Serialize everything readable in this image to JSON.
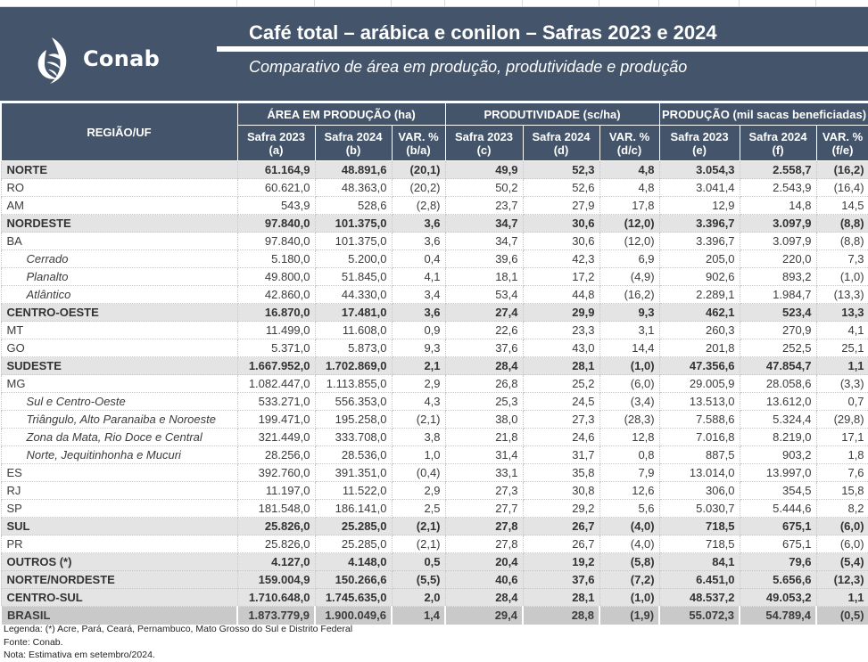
{
  "header": {
    "logo_text": "Conab",
    "title": "Café total – arábica e conilon – Safras 2023 e 2024",
    "subtitle": "Comparativo de área em produção, produtividade e produção"
  },
  "table": {
    "region_header": "REGIÃO/UF",
    "groups": [
      "ÁREA EM PRODUÇÃO (ha)",
      "PRODUTIVIDADE (sc/ha)",
      "PRODUÇÃO (mil sacas beneficiadas)"
    ],
    "subheaders": [
      {
        "l1": "Safra 2023",
        "l2": "(a)"
      },
      {
        "l1": "Safra 2024",
        "l2": "(b)"
      },
      {
        "l1": "VAR. %",
        "l2": "(b/a)"
      },
      {
        "l1": "Safra 2023",
        "l2": "(c)"
      },
      {
        "l1": "Safra 2024",
        "l2": "(d)"
      },
      {
        "l1": "VAR. %",
        "l2": "(d/c)"
      },
      {
        "l1": "Safra 2023",
        "l2": "(e)"
      },
      {
        "l1": "Safra 2024",
        "l2": "(f)"
      },
      {
        "l1": "VAR. %",
        "l2": "(f/e)"
      }
    ],
    "rows": [
      {
        "name": "NORTE",
        "type": "bold",
        "v": [
          "61.164,9",
          "48.891,6",
          "(20,1)",
          "49,9",
          "52,3",
          "4,8",
          "3.054,3",
          "2.558,7",
          "(16,2)"
        ]
      },
      {
        "name": "RO",
        "type": "normal",
        "v": [
          "60.621,0",
          "48.363,0",
          "(20,2)",
          "50,2",
          "52,6",
          "4,8",
          "3.041,4",
          "2.543,9",
          "(16,4)"
        ]
      },
      {
        "name": "AM",
        "type": "normal",
        "v": [
          "543,9",
          "528,6",
          "(2,8)",
          "23,7",
          "27,9",
          "17,8",
          "12,9",
          "14,8",
          "14,5"
        ]
      },
      {
        "name": "NORDESTE",
        "type": "bold",
        "v": [
          "97.840,0",
          "101.375,0",
          "3,6",
          "34,7",
          "30,6",
          "(12,0)",
          "3.396,7",
          "3.097,9",
          "(8,8)"
        ]
      },
      {
        "name": "BA",
        "type": "normal",
        "v": [
          "97.840,0",
          "101.375,0",
          "3,6",
          "34,7",
          "30,6",
          "(12,0)",
          "3.396,7",
          "3.097,9",
          "(8,8)"
        ]
      },
      {
        "name": "Cerrado",
        "type": "italic",
        "v": [
          "5.180,0",
          "5.200,0",
          "0,4",
          "39,6",
          "42,3",
          "6,9",
          "205,0",
          "220,0",
          "7,3"
        ]
      },
      {
        "name": "Planalto",
        "type": "italic",
        "v": [
          "49.800,0",
          "51.845,0",
          "4,1",
          "18,1",
          "17,2",
          "(4,9)",
          "902,6",
          "893,2",
          "(1,0)"
        ]
      },
      {
        "name": "Atlântico",
        "type": "italic",
        "v": [
          "42.860,0",
          "44.330,0",
          "3,4",
          "53,4",
          "44,8",
          "(16,2)",
          "2.289,1",
          "1.984,7",
          "(13,3)"
        ]
      },
      {
        "name": "CENTRO-OESTE",
        "type": "bold",
        "v": [
          "16.870,0",
          "17.481,0",
          "3,6",
          "27,4",
          "29,9",
          "9,3",
          "462,1",
          "523,4",
          "13,3"
        ]
      },
      {
        "name": "MT",
        "type": "normal",
        "v": [
          "11.499,0",
          "11.608,0",
          "0,9",
          "22,6",
          "23,3",
          "3,1",
          "260,3",
          "270,9",
          "4,1"
        ]
      },
      {
        "name": "GO",
        "type": "normal",
        "v": [
          "5.371,0",
          "5.873,0",
          "9,3",
          "37,6",
          "43,0",
          "14,4",
          "201,8",
          "252,5",
          "25,1"
        ]
      },
      {
        "name": "SUDESTE",
        "type": "bold",
        "v": [
          "1.667.952,0",
          "1.702.869,0",
          "2,1",
          "28,4",
          "28,1",
          "(1,0)",
          "47.356,6",
          "47.854,7",
          "1,1"
        ]
      },
      {
        "name": "MG",
        "type": "normal",
        "v": [
          "1.082.447,0",
          "1.113.855,0",
          "2,9",
          "26,8",
          "25,2",
          "(6,0)",
          "29.005,9",
          "28.058,6",
          "(3,3)"
        ]
      },
      {
        "name": "Sul e Centro-Oeste",
        "type": "italic",
        "v": [
          "533.271,0",
          "556.353,0",
          "4,3",
          "25,3",
          "24,5",
          "(3,4)",
          "13.513,0",
          "13.612,0",
          "0,7"
        ]
      },
      {
        "name": "Triângulo, Alto Paranaiba e Noroeste",
        "type": "italic",
        "v": [
          "199.471,0",
          "195.258,0",
          "(2,1)",
          "38,0",
          "27,3",
          "(28,3)",
          "7.588,6",
          "5.324,4",
          "(29,8)"
        ]
      },
      {
        "name": "Zona da Mata, Rio Doce e Central",
        "type": "italic",
        "v": [
          "321.449,0",
          "333.708,0",
          "3,8",
          "21,8",
          "24,6",
          "12,8",
          "7.016,8",
          "8.219,0",
          "17,1"
        ]
      },
      {
        "name": "Norte, Jequitinhonha e Mucuri",
        "type": "italic",
        "v": [
          "28.256,0",
          "28.536,0",
          "1,0",
          "31,4",
          "31,7",
          "0,8",
          "887,5",
          "903,2",
          "1,8"
        ]
      },
      {
        "name": "ES",
        "type": "normal",
        "v": [
          "392.760,0",
          "391.351,0",
          "(0,4)",
          "33,1",
          "35,8",
          "7,9",
          "13.014,0",
          "13.997,0",
          "7,6"
        ]
      },
      {
        "name": "RJ",
        "type": "normal",
        "v": [
          "11.197,0",
          "11.522,0",
          "2,9",
          "27,3",
          "30,8",
          "12,6",
          "306,0",
          "354,5",
          "15,8"
        ]
      },
      {
        "name": "SP",
        "type": "normal",
        "v": [
          "181.548,0",
          "186.141,0",
          "2,5",
          "27,7",
          "29,2",
          "5,6",
          "5.030,7",
          "5.444,6",
          "8,2"
        ]
      },
      {
        "name": "SUL",
        "type": "bold",
        "v": [
          "25.826,0",
          "25.285,0",
          "(2,1)",
          "27,8",
          "26,7",
          "(4,0)",
          "718,5",
          "675,1",
          "(6,0)"
        ]
      },
      {
        "name": "PR",
        "type": "normal",
        "v": [
          "25.826,0",
          "25.285,0",
          "(2,1)",
          "27,8",
          "26,7",
          "(4,0)",
          "718,5",
          "675,1",
          "(6,0)"
        ]
      },
      {
        "name": "OUTROS (*)",
        "type": "bold",
        "v": [
          "4.127,0",
          "4.148,0",
          "0,5",
          "20,4",
          "19,2",
          "(5,8)",
          "84,1",
          "79,6",
          "(5,4)"
        ]
      },
      {
        "name": "NORTE/NORDESTE",
        "type": "bold",
        "v": [
          "159.004,9",
          "150.266,6",
          "(5,5)",
          "40,6",
          "37,6",
          "(7,2)",
          "6.451,0",
          "5.656,6",
          "(12,3)"
        ]
      },
      {
        "name": "CENTRO-SUL",
        "type": "bold",
        "v": [
          "1.710.648,0",
          "1.745.635,0",
          "2,0",
          "28,4",
          "28,1",
          "(1,0)",
          "48.537,2",
          "49.053,2",
          "1,1"
        ]
      },
      {
        "name": "BRASIL",
        "type": "brasil",
        "v": [
          "1.873.779,9",
          "1.900.049,6",
          "1,4",
          "29,4",
          "28,8",
          "(1,9)",
          "55.072,3",
          "54.789,4",
          "(0,5)"
        ]
      }
    ]
  },
  "footer": {
    "legend": "Legenda: (*) Acre, Pará, Ceará, Pernambuco, Mato Grosso do Sul e Distrito Federal",
    "source": "Fonte: Conab.",
    "note": "Nota: Estimativa em setembro/2024."
  },
  "colors": {
    "header_bg": "#44546a",
    "subtotal_bg": "#e4e4e4",
    "total_bg": "#c9c9c9"
  }
}
